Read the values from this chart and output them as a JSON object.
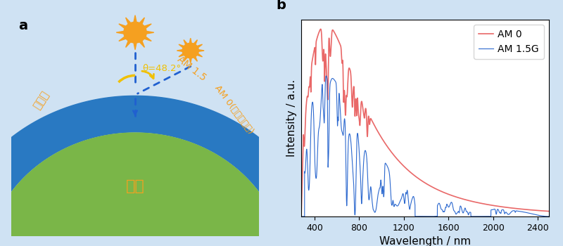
{
  "fig_width": 8.0,
  "fig_height": 3.5,
  "bg_color": "#cfe2f3",
  "panel_a_bg": "#ffffff",
  "panel_a_label": "a",
  "panel_b_label": "b",
  "label_fontsize": 14,
  "earth_color": "#7ab648",
  "atm_color": "#2979c2",
  "sun_color": "#f5a020",
  "sun_inner_color": "#f5a020",
  "arrow_color": "#2060d0",
  "angle_color": "#f0c000",
  "text_color_cn": "#f5a020",
  "am0_label": "AM 0(大气层上界)",
  "atm_label": "大气层",
  "earth_label": "地球",
  "am15_label": "AM 1.5",
  "theta_label": "θ=48.2°",
  "legend_am0": "AM 0",
  "legend_am15g": "AM 1.5G",
  "xlabel": "Wavelength / nm",
  "ylabel": "Intensity / a.u.",
  "am0_color": "#e86060",
  "am15g_color": "#2060cc",
  "xlim": [
    280,
    2500
  ],
  "xticks": [
    400,
    800,
    1200,
    1600,
    2000,
    2400
  ]
}
